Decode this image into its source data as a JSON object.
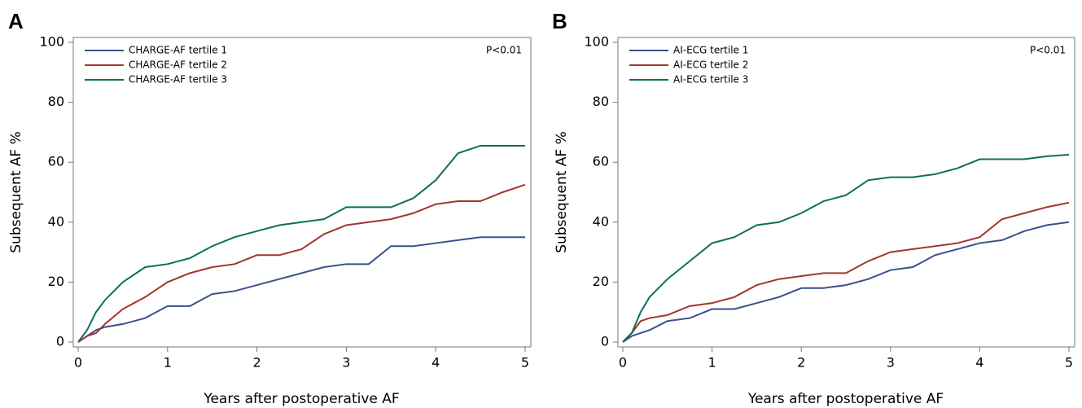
{
  "chart_data": [
    {
      "type": "line",
      "panel": "A",
      "annotation": "P<0.01",
      "x_label": "Years after postoperative AF",
      "y_label": "Subsequent AF %",
      "x": [
        0,
        0.1,
        0.2,
        0.3,
        0.5,
        0.75,
        1,
        1.25,
        1.5,
        1.75,
        2,
        2.25,
        2.5,
        2.75,
        3,
        3.25,
        3.5,
        3.75,
        4,
        4.25,
        4.5,
        4.75,
        5
      ],
      "series": [
        {
          "name": "CHARGE-AF tertile 1",
          "color": "#3d4f8e",
          "values": [
            0,
            2,
            4,
            5,
            6,
            8,
            12,
            12,
            16,
            17,
            19,
            21,
            23,
            25,
            26,
            26,
            32,
            32,
            33,
            34,
            35,
            35,
            35
          ]
        },
        {
          "name": "CHARGE-AF tertile 2",
          "color": "#a0372f",
          "values": [
            0,
            2,
            3,
            6,
            11,
            15,
            20,
            23,
            25,
            26,
            29,
            29,
            31,
            36,
            39,
            40,
            41,
            43,
            46,
            47,
            47,
            50,
            52.5
          ]
        },
        {
          "name": "CHARGE-AF tertile 3",
          "color": "#0c6e5f",
          "values": [
            0,
            4,
            10,
            14,
            20,
            25,
            26,
            28,
            32,
            35,
            37,
            39,
            40,
            41,
            45,
            45,
            45,
            48,
            54,
            63,
            65.5,
            65.5,
            65.5
          ]
        }
      ],
      "xlim": [
        0,
        5
      ],
      "xticks": [
        0,
        1,
        2,
        3,
        4,
        5
      ],
      "ylim": [
        0,
        100
      ],
      "yticks": [
        0,
        20,
        40,
        60,
        80,
        100
      ]
    },
    {
      "type": "line",
      "panel": "B",
      "annotation": "P<0.01",
      "x_label": "Years after postoperative AF",
      "y_label": "Subsequent AF %",
      "x": [
        0,
        0.1,
        0.2,
        0.3,
        0.5,
        0.75,
        1,
        1.25,
        1.5,
        1.75,
        2,
        2.25,
        2.5,
        2.75,
        3,
        3.25,
        3.5,
        3.75,
        4,
        4.25,
        4.5,
        4.75,
        5
      ],
      "series": [
        {
          "name": "AI-ECG tertile 1",
          "color": "#3d4f8e",
          "values": [
            0,
            2,
            3,
            4,
            7,
            8,
            11,
            11,
            13,
            15,
            18,
            18,
            19,
            21,
            24,
            25,
            29,
            31,
            33,
            34,
            37,
            39,
            40
          ]
        },
        {
          "name": "AI-ECG tertile 2",
          "color": "#a0372f",
          "values": [
            0,
            3,
            7,
            8,
            9,
            12,
            13,
            15,
            19,
            21,
            22,
            23,
            23,
            27,
            30,
            31,
            32,
            33,
            35,
            41,
            43,
            45,
            46.5
          ]
        },
        {
          "name": "AI-ECG tertile 3",
          "color": "#0c6e5f",
          "values": [
            0,
            3,
            10,
            15,
            21,
            27,
            33,
            35,
            39,
            40,
            43,
            47,
            49,
            54,
            55,
            55,
            56,
            58,
            61,
            61,
            61,
            62,
            62.5
          ]
        }
      ],
      "xlim": [
        0,
        5
      ],
      "xticks": [
        0,
        1,
        2,
        3,
        4,
        5
      ],
      "ylim": [
        0,
        100
      ],
      "yticks": [
        0,
        20,
        40,
        60,
        80,
        100
      ]
    }
  ]
}
